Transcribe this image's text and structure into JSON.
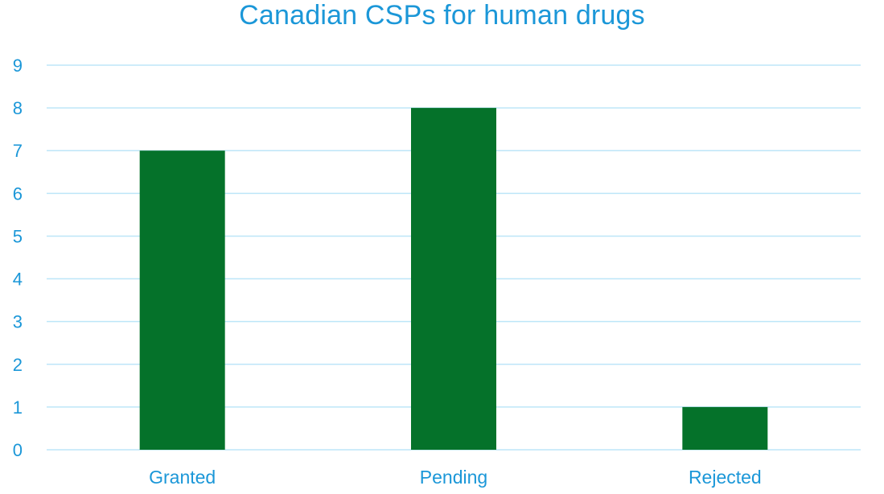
{
  "chart_data": {
    "type": "bar",
    "title": "Canadian CSPs for human drugs",
    "categories": [
      "Granted",
      "Pending",
      "Rejected"
    ],
    "values": [
      7,
      8,
      1
    ],
    "xlabel": "",
    "ylabel": "",
    "ylim": [
      0,
      9
    ],
    "yticks": [
      0,
      1,
      2,
      3,
      4,
      5,
      6,
      7,
      8,
      9
    ],
    "grid": true,
    "legend": "none",
    "colors": {
      "bar": "#05722A",
      "text": "#1B97D8",
      "grid": "#BDE6F8"
    }
  }
}
